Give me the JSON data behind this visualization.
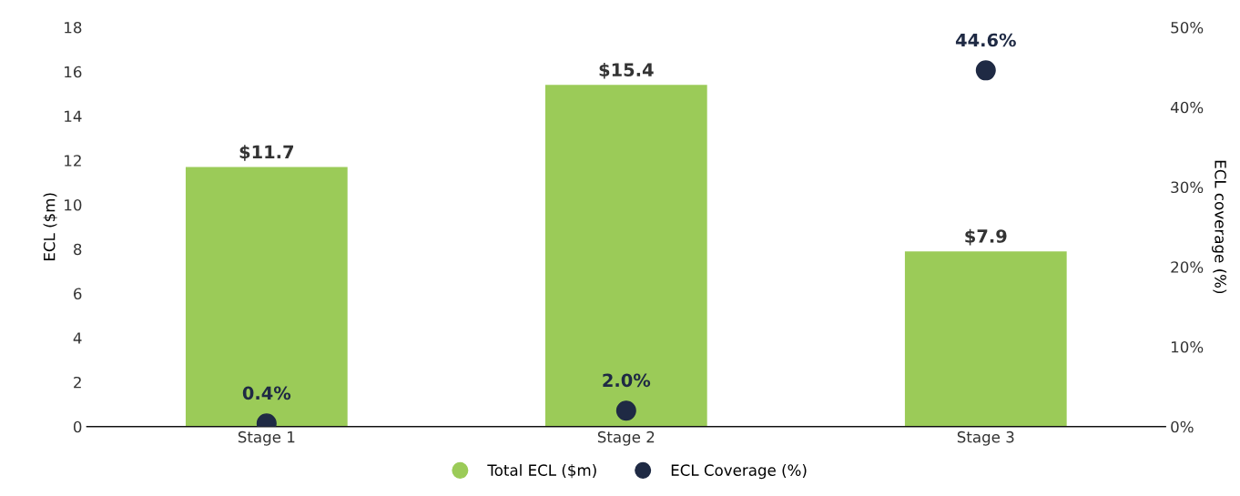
{
  "chart_data": {
    "type": "bar",
    "ylabel": "ECL ($m)",
    "y2label": "ECL coverage (%)",
    "categories": [
      "Stage 1",
      "Stage 2",
      "Stage 3"
    ],
    "series": [
      {
        "name": "Total ECL ($m)",
        "color": "#9bcb58",
        "values": [
          11.7,
          15.4,
          7.9
        ],
        "value_labels": [
          "$11.7",
          "$15.4",
          "$7.9"
        ]
      },
      {
        "name": "ECL Coverage (%)",
        "type": "scatter",
        "axis": "y2",
        "color": "#1f2a44",
        "marker": "circle",
        "values": [
          0.4,
          2.0,
          44.6
        ],
        "value_labels": [
          "0.4%",
          "2.0%",
          "44.6%"
        ]
      }
    ],
    "ylim": [
      0,
      18
    ],
    "yticks": [
      0,
      2,
      4,
      6,
      8,
      10,
      12,
      14,
      16,
      18
    ],
    "y2lim": [
      0,
      50
    ],
    "y2ticks": [
      {
        "value": 0,
        "label": "0%"
      },
      {
        "value": 10,
        "label": "10%"
      },
      {
        "value": 20,
        "label": "20%"
      },
      {
        "value": 30,
        "label": "30%"
      },
      {
        "value": 40,
        "label": "40%"
      },
      {
        "value": 50,
        "label": "50%"
      }
    ],
    "grid": false,
    "legend": "bottom"
  }
}
